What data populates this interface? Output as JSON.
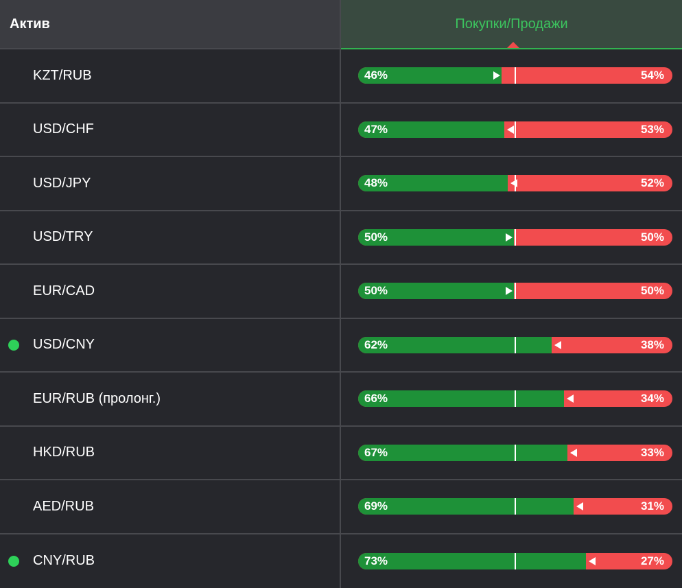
{
  "header": {
    "asset": "Актив",
    "ratio": "Покупки/Продажи"
  },
  "rows": [
    {
      "asset": "KZT/RUB",
      "buy_pct": 46,
      "sell_pct": 54,
      "buy_label": "46%",
      "sell_label": "54%",
      "indicator": false,
      "arrow": "right"
    },
    {
      "asset": "USD/CHF",
      "buy_pct": 47,
      "sell_pct": 53,
      "buy_label": "47%",
      "sell_label": "53%",
      "indicator": false,
      "arrow": "left"
    },
    {
      "asset": "USD/JPY",
      "buy_pct": 48,
      "sell_pct": 52,
      "buy_label": "48%",
      "sell_label": "52%",
      "indicator": false,
      "arrow": "left"
    },
    {
      "asset": "USD/TRY",
      "buy_pct": 50,
      "sell_pct": 50,
      "buy_label": "50%",
      "sell_label": "50%",
      "indicator": false,
      "arrow": "right"
    },
    {
      "asset": "EUR/CAD",
      "buy_pct": 50,
      "sell_pct": 50,
      "buy_label": "50%",
      "sell_label": "50%",
      "indicator": false,
      "arrow": "right"
    },
    {
      "asset": "USD/CNY",
      "buy_pct": 62,
      "sell_pct": 38,
      "buy_label": "62%",
      "sell_label": "38%",
      "indicator": true,
      "arrow": "left"
    },
    {
      "asset": "EUR/RUB (пролонг.)",
      "buy_pct": 66,
      "sell_pct": 34,
      "buy_label": "66%",
      "sell_label": "34%",
      "indicator": false,
      "arrow": "left"
    },
    {
      "asset": "HKD/RUB",
      "buy_pct": 67,
      "sell_pct": 33,
      "buy_label": "67%",
      "sell_label": "33%",
      "indicator": false,
      "arrow": "left"
    },
    {
      "asset": "AED/RUB",
      "buy_pct": 69,
      "sell_pct": 31,
      "buy_label": "69%",
      "sell_label": "31%",
      "indicator": false,
      "arrow": "left"
    },
    {
      "asset": "CNY/RUB",
      "buy_pct": 73,
      "sell_pct": 27,
      "buy_label": "73%",
      "sell_label": "27%",
      "indicator": true,
      "arrow": "left"
    }
  ],
  "colors": {
    "buy": "#1e9138",
    "sell": "#f24c4e",
    "accent": "#3cc45e",
    "indicator": "#2ed159"
  },
  "icons": {
    "sort": "sort-indicator-icon",
    "status": "status-dot-icon",
    "arrow": "arrow-icon"
  }
}
